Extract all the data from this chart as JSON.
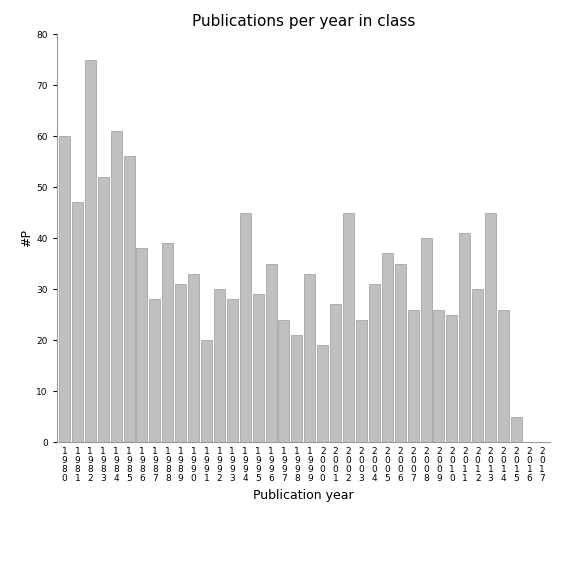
{
  "title": "Publications per year in class",
  "xlabel": "Publication year",
  "ylabel": "#P",
  "years": [
    "1980",
    "1981",
    "1982",
    "1983",
    "1984",
    "1985",
    "1986",
    "1987",
    "1988",
    "1989",
    "1990",
    "1991",
    "1992",
    "1993",
    "1994",
    "1995",
    "1996",
    "1997",
    "1998",
    "1999",
    "2000",
    "2001",
    "2002",
    "2003",
    "2004",
    "2005",
    "2006",
    "2007",
    "2008",
    "2009",
    "2010",
    "2011",
    "2012",
    "2013",
    "2014",
    "2015",
    "2016",
    "2017"
  ],
  "values": [
    60,
    47,
    75,
    52,
    61,
    56,
    38,
    28,
    39,
    31,
    33,
    20,
    30,
    28,
    45,
    29,
    35,
    24,
    21,
    33,
    19,
    27,
    45,
    24,
    31,
    37,
    35,
    26,
    40,
    26,
    25,
    41,
    30,
    45,
    26,
    5,
    0,
    0
  ],
  "ylim": [
    0,
    80
  ],
  "yticks": [
    0,
    10,
    20,
    30,
    40,
    50,
    60,
    70,
    80
  ],
  "bar_color": "#c0c0c0",
  "bar_edgecolor": "#999999",
  "bg_color": "#ffffff",
  "title_fontsize": 11,
  "axis_label_fontsize": 9,
  "tick_fontsize": 6.5
}
